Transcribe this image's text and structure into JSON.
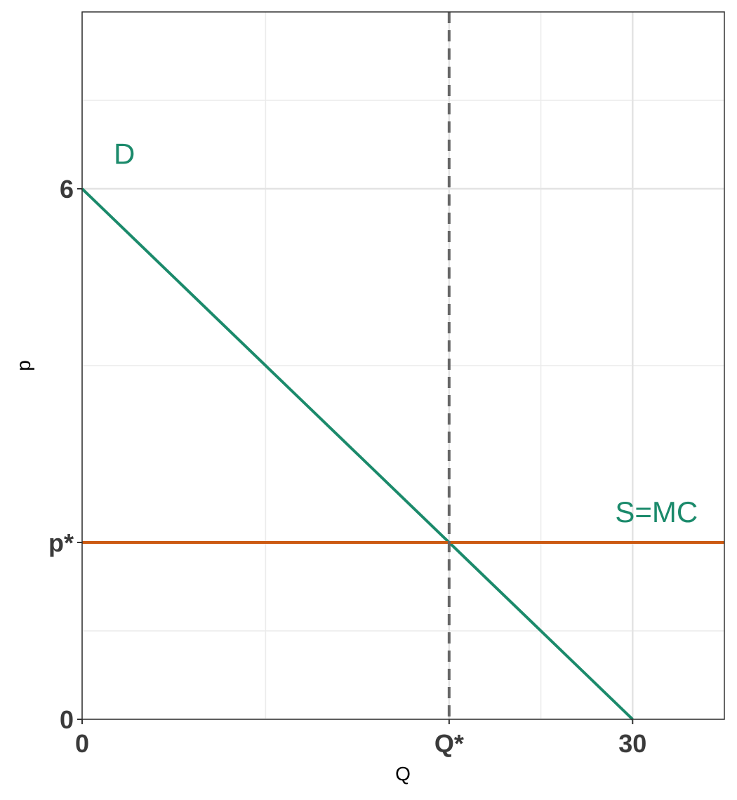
{
  "chart_data": {
    "type": "line",
    "xlabel": "Q",
    "ylabel": "p",
    "xlim": [
      0,
      35
    ],
    "ylim": [
      0,
      8
    ],
    "grid": true,
    "x_ticks": [
      {
        "value": 0,
        "label": "0"
      },
      {
        "value": 20,
        "label": "Q*"
      },
      {
        "value": 30,
        "label": "30"
      }
    ],
    "y_ticks": [
      {
        "value": 0,
        "label": "0"
      },
      {
        "value": 2,
        "label": "p*"
      },
      {
        "value": 6,
        "label": "6"
      }
    ],
    "minor_grid_x": [
      10,
      25
    ],
    "minor_grid_y": [
      1,
      4,
      7
    ],
    "series": [
      {
        "name": "D",
        "color": "#1b8a6b",
        "points": [
          [
            0,
            6
          ],
          [
            30,
            0
          ]
        ]
      },
      {
        "name": "S=MC",
        "color": "#cc5a12",
        "points": [
          [
            0,
            2
          ],
          [
            35,
            2
          ]
        ]
      }
    ],
    "reference_lines": [
      {
        "orientation": "vertical",
        "x": 20,
        "style": "dashed",
        "color": "#666666"
      }
    ],
    "annotations": [
      {
        "text": "D",
        "x": 2.3,
        "y": 6.4,
        "color": "#1b8a6b"
      },
      {
        "text": "S=MC",
        "x": 31.3,
        "y": 2.35,
        "color": "#1b8a6b"
      }
    ]
  }
}
